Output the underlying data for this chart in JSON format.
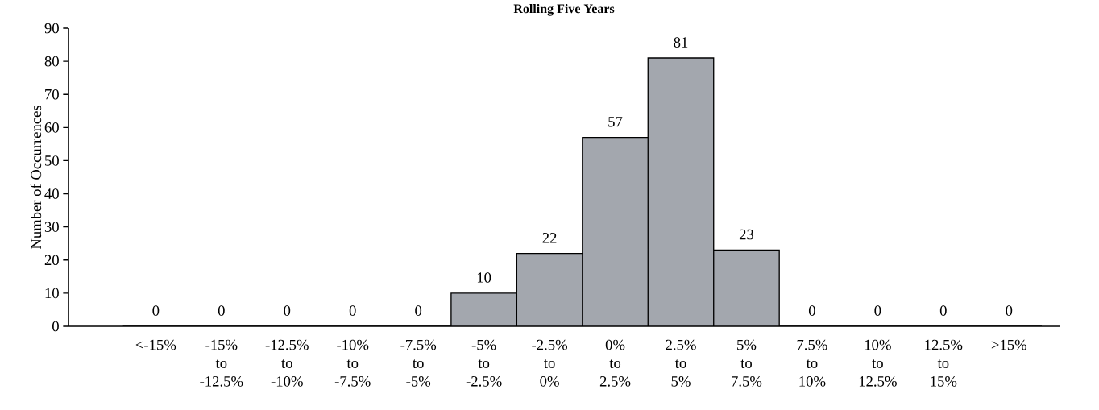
{
  "chart_data": {
    "type": "bar",
    "title": "Rolling Five Years",
    "ylabel": "Number of Occurrences",
    "categories": [
      "<-15%",
      "-15% to -12.5%",
      "-12.5% to -10%",
      "-10% to -7.5%",
      "-7.5% to -5%",
      "-5% to -2.5%",
      "-2.5% to 0%",
      "0% to 2.5%",
      "2.5% to 5%",
      "5% to 7.5%",
      "7.5% to 10%",
      "10% to 12.5%",
      "12.5% to 15%",
      ">15%"
    ],
    "values": [
      0,
      0,
      0,
      0,
      0,
      10,
      22,
      57,
      81,
      23,
      0,
      0,
      0,
      0
    ],
    "color": "#a3a7ae",
    "ylim": [
      0,
      90
    ],
    "yticks": [
      0,
      10,
      20,
      30,
      40,
      50,
      60,
      70,
      80,
      90
    ],
    "data_labels": true,
    "grid": false
  }
}
